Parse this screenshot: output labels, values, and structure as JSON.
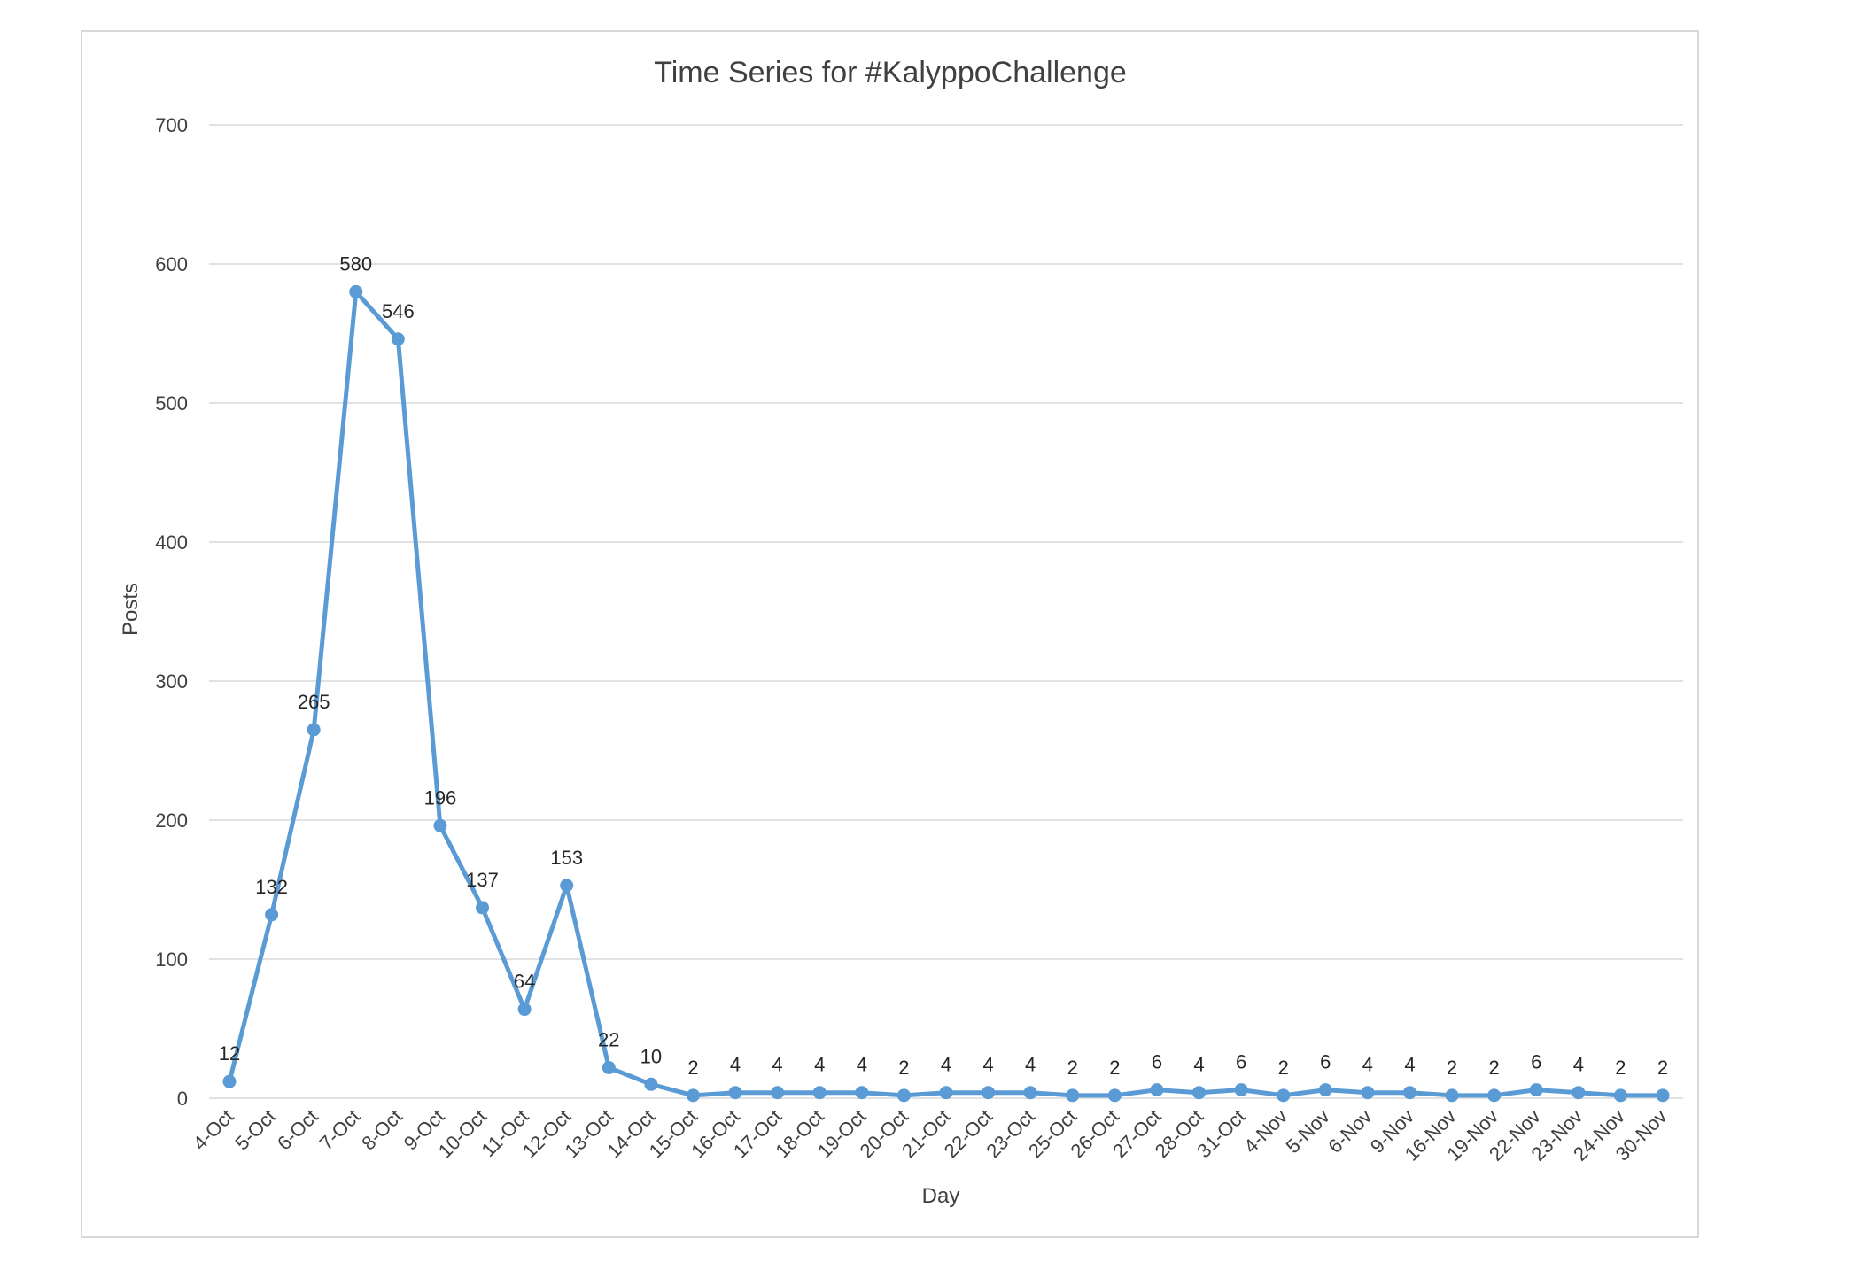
{
  "chart_data": {
    "type": "line",
    "title": "Time Series for #KalyppoChallenge",
    "xlabel": "Day",
    "ylabel": "Posts",
    "ylim": [
      0,
      700
    ],
    "yticks": [
      0,
      100,
      200,
      300,
      400,
      500,
      600,
      700
    ],
    "grid": true,
    "legend": "none",
    "data_labels": true,
    "categories": [
      "4-Oct",
      "5-Oct",
      "6-Oct",
      "7-Oct",
      "8-Oct",
      "9-Oct",
      "10-Oct",
      "11-Oct",
      "12-Oct",
      "13-Oct",
      "14-Oct",
      "15-Oct",
      "16-Oct",
      "17-Oct",
      "18-Oct",
      "19-Oct",
      "20-Oct",
      "21-Oct",
      "22-Oct",
      "23-Oct",
      "25-Oct",
      "26-Oct",
      "27-Oct",
      "28-Oct",
      "31-Oct",
      "4-Nov",
      "5-Nov",
      "6-Nov",
      "9-Nov",
      "16-Nov",
      "19-Nov",
      "22-Nov",
      "23-Nov",
      "24-Nov",
      "30-Nov"
    ],
    "series": [
      {
        "values": [
          12,
          132,
          265,
          580,
          546,
          196,
          137,
          64,
          153,
          22,
          10,
          2,
          4,
          4,
          4,
          4,
          2,
          4,
          4,
          4,
          2,
          2,
          6,
          4,
          6,
          2,
          6,
          4,
          4,
          2,
          2,
          6,
          4,
          2,
          2
        ],
        "color": "#5b9bd5"
      }
    ]
  }
}
